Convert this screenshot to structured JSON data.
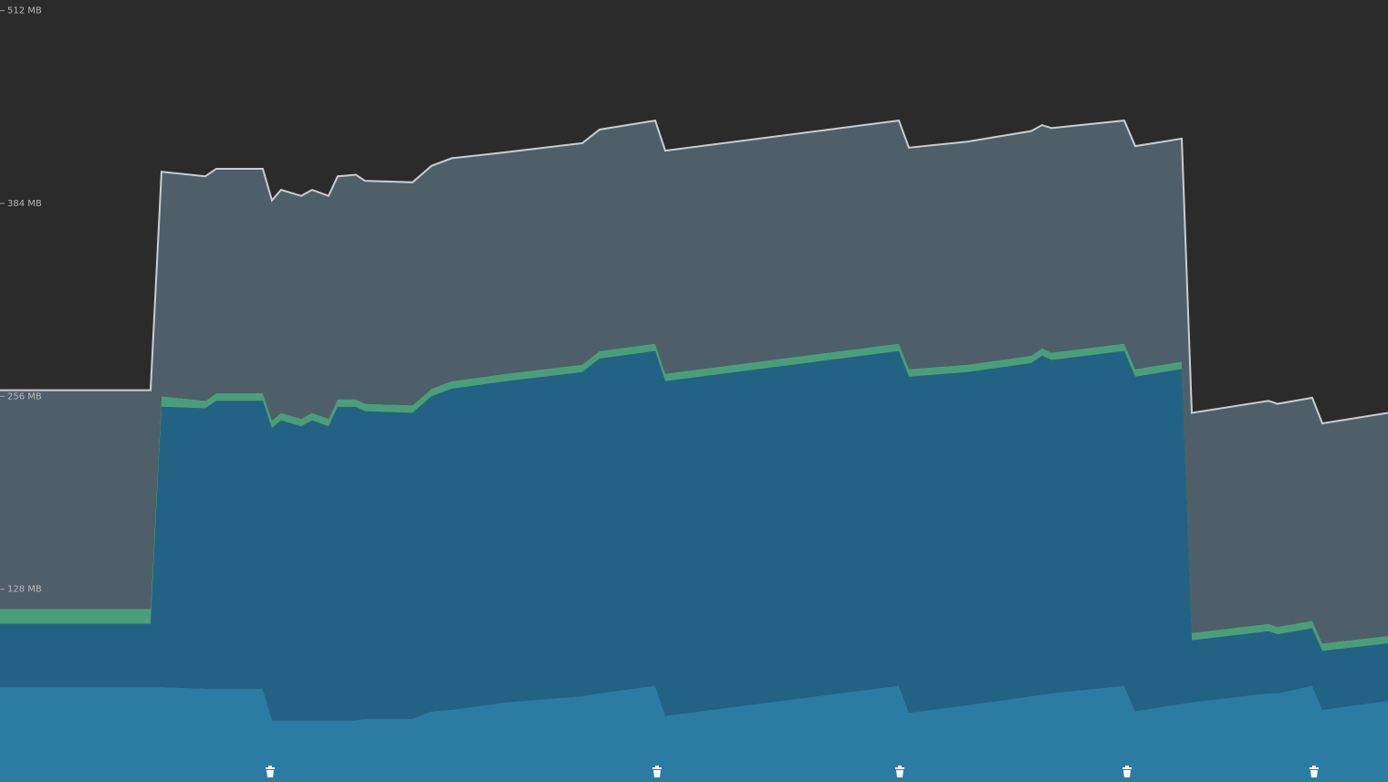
{
  "chart_data": {
    "type": "area",
    "stacked": true,
    "background": "#2b2b2b",
    "outline_color": "#c9cdd1",
    "x": [
      0,
      16.5,
      17.7,
      22.5,
      23.7,
      28.8,
      29.8,
      30.8,
      33,
      34.2,
      36,
      37,
      39,
      40,
      45.2,
      47.3,
      49.5,
      55.5,
      63.8,
      65.7,
      71.8,
      72.9,
      98.5,
      99.6,
      106,
      113,
      114.2,
      115.2,
      123.2,
      124.4,
      129.5,
      130.6,
      139,
      140,
      143.8,
      144.9,
      152.1
    ],
    "series": [
      {
        "color": "#2b7ba3",
        "values": [
          63,
          63,
          63,
          62,
          62,
          62,
          41,
          41,
          41,
          41,
          41,
          41,
          41,
          42,
          42,
          47,
          48,
          53,
          57,
          59,
          64,
          44,
          64,
          46,
          51,
          57,
          58,
          59,
          64,
          47,
          52,
          53,
          59,
          59,
          64,
          48,
          54
        ]
      },
      {
        "color": "#226385",
        "values": [
          42,
          42,
          186,
          186,
          191,
          191,
          194,
          199,
          195,
          199,
          195,
          208,
          208,
          204,
          203,
          209,
          213,
          213,
          215,
          222,
          222,
          222,
          222,
          223,
          221,
          221,
          225,
          221,
          222,
          222,
          222,
          41,
          41,
          39,
          38,
          39,
          38
        ]
      },
      {
        "color": "#4a9e7a",
        "values": [
          10,
          10,
          7,
          5,
          5,
          5,
          5,
          5,
          5,
          5,
          5,
          5,
          5,
          5,
          5,
          5,
          5,
          5,
          5,
          5,
          5,
          5,
          5,
          5,
          5,
          5,
          5,
          5,
          5,
          5,
          5,
          5,
          5,
          5,
          5,
          5,
          5
        ]
      },
      {
        "color": "#4f5f6a",
        "values": [
          145,
          145,
          149,
          149,
          149,
          149,
          146,
          148,
          148,
          148,
          148,
          148,
          149,
          148,
          148,
          148,
          148,
          147,
          147,
          147,
          148,
          148,
          148,
          147,
          148,
          149,
          148,
          149,
          148,
          148,
          148,
          146,
          148,
          148,
          148,
          146,
          148
        ]
      }
    ],
    "xlim": [
      0,
      152.1
    ],
    "ylim": [
      0,
      519
    ],
    "yticks": [
      {
        "value": 128,
        "label": "128 MB"
      },
      {
        "value": 256,
        "label": "256 MB"
      },
      {
        "value": 384,
        "label": "384 MB"
      },
      {
        "value": 512,
        "label": "512 MB"
      }
    ],
    "grid": false
  }
}
